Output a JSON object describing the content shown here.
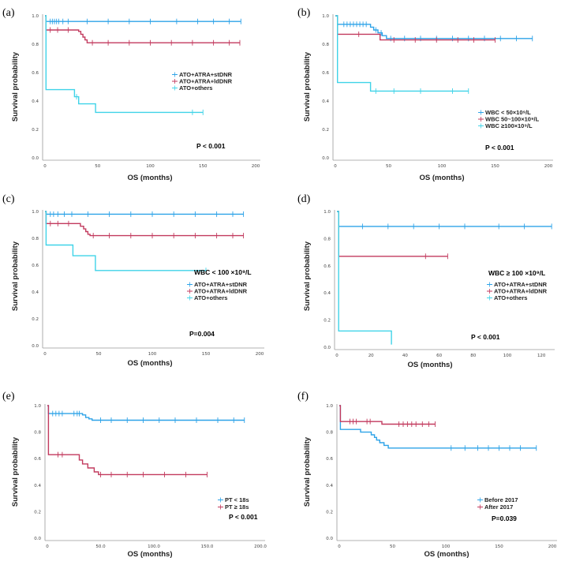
{
  "colors": {
    "blue": "#2ea3e8",
    "red": "#c23a5e",
    "cyan": "#3fd3e8"
  },
  "chart_data": [
    {
      "type": "line",
      "panel": "(a)",
      "subtitle": "",
      "pvalue": "P < 0.001",
      "xlabel": "OS (months)",
      "ylabel": "Survival probability",
      "xlim": [
        0,
        200
      ],
      "ylim": [
        0,
        1.0
      ],
      "xticks": [
        0,
        50,
        100,
        150,
        200
      ],
      "xtick_labels": [
        "0",
        "50",
        "100",
        "150",
        "200"
      ],
      "yticks": [
        0,
        0.2,
        0.4,
        0.6,
        0.8,
        1.0
      ],
      "ytick_labels": [
        "0.0",
        "0.2",
        "0.4",
        "0.6",
        "0.8",
        "1.0"
      ],
      "legend_pos": "middle-right",
      "series": [
        {
          "name": "ATO+ATRA+stDNR",
          "color": "blue",
          "steps": [
            [
              0,
              1.0
            ],
            [
              1,
              0.96
            ],
            [
              186,
              0.96
            ]
          ],
          "censors": [
            5,
            7,
            9,
            11,
            13,
            17,
            22,
            40,
            60,
            80,
            100,
            125,
            145,
            160,
            175,
            186
          ]
        },
        {
          "name": "ATO+ATRA+ldDNR",
          "color": "red",
          "steps": [
            [
              0,
              1.0
            ],
            [
              1,
              0.9
            ],
            [
              30,
              0.9
            ],
            [
              32,
              0.89
            ],
            [
              34,
              0.87
            ],
            [
              36,
              0.85
            ],
            [
              38,
              0.83
            ],
            [
              40,
              0.81
            ],
            [
              185,
              0.81
            ]
          ],
          "censors": [
            5,
            12,
            22,
            45,
            60,
            80,
            100,
            120,
            140,
            160,
            175,
            185
          ]
        },
        {
          "name": "ATO+others",
          "color": "cyan",
          "steps": [
            [
              0,
              1.0
            ],
            [
              1,
              0.48
            ],
            [
              28,
              0.48
            ],
            [
              28,
              0.43
            ],
            [
              32,
              0.43
            ],
            [
              32,
              0.38
            ],
            [
              48,
              0.38
            ],
            [
              48,
              0.32
            ],
            [
              150,
              0.32
            ]
          ],
          "censors": [
            30,
            140,
            150
          ]
        }
      ]
    },
    {
      "type": "line",
      "panel": "(b)",
      "subtitle": "",
      "pvalue": "P < 0.001",
      "xlabel": "OS (months)",
      "ylabel": "Survival probability",
      "xlim": [
        0,
        200
      ],
      "ylim": [
        0,
        1.0
      ],
      "xticks": [
        0,
        50,
        100,
        150,
        200
      ],
      "xtick_labels": [
        "0",
        "50",
        "100",
        "150",
        "200"
      ],
      "yticks": [
        0,
        0.2,
        0.4,
        0.6,
        0.8,
        1.0
      ],
      "ytick_labels": [
        "0.0",
        "0.2",
        "0.4",
        "0.6",
        "0.8",
        "1.0"
      ],
      "legend_pos": "bottom-right",
      "series": [
        {
          "name": "WBC  < 50×10⁹/L",
          "color": "blue",
          "steps": [
            [
              0,
              1.0
            ],
            [
              2,
              0.94
            ],
            [
              30,
              0.94
            ],
            [
              33,
              0.92
            ],
            [
              36,
              0.9
            ],
            [
              40,
              0.88
            ],
            [
              44,
              0.86
            ],
            [
              48,
              0.84
            ],
            [
              185,
              0.84
            ]
          ],
          "censors": [
            8,
            11,
            14,
            17,
            20,
            23,
            26,
            29,
            38,
            43,
            52,
            65,
            80,
            95,
            110,
            125,
            140,
            155,
            170,
            185
          ]
        },
        {
          "name": "WBC  50~100×10⁹/L",
          "color": "red",
          "steps": [
            [
              0,
              1.0
            ],
            [
              2,
              0.87
            ],
            [
              40,
              0.87
            ],
            [
              42,
              0.83
            ],
            [
              150,
              0.83
            ]
          ],
          "censors": [
            22,
            55,
            75,
            95,
            115,
            130,
            150
          ]
        },
        {
          "name": "WBC  ≥100×10⁹/L",
          "color": "cyan",
          "steps": [
            [
              0,
              1.0
            ],
            [
              2,
              0.53
            ],
            [
              33,
              0.53
            ],
            [
              33,
              0.47
            ],
            [
              125,
              0.47
            ]
          ],
          "censors": [
            38,
            55,
            80,
            110,
            125
          ]
        }
      ]
    },
    {
      "type": "line",
      "panel": "(c)",
      "subtitle": "WBC < 100 ×10⁹/L",
      "pvalue": "P=0.004",
      "xlabel": "OS (months)",
      "ylabel": "Survival probability",
      "xlim": [
        0,
        200
      ],
      "ylim": [
        0,
        1.0
      ],
      "xticks": [
        0,
        50,
        100,
        150,
        200
      ],
      "xtick_labels": [
        "0",
        "50",
        "100",
        "150",
        "200"
      ],
      "yticks": [
        0,
        0.2,
        0.4,
        0.6,
        0.8,
        1.0
      ],
      "ytick_labels": [
        "0.0",
        "0.2",
        "0.4",
        "0.6",
        "0.8",
        "1.0"
      ],
      "legend_pos": "bottom-right",
      "series": [
        {
          "name": "ATO+ATRA+stDNR",
          "color": "blue",
          "steps": [
            [
              0,
              1.0
            ],
            [
              1,
              0.98
            ],
            [
              185,
              0.98
            ]
          ],
          "censors": [
            5,
            8,
            12,
            18,
            25,
            40,
            60,
            80,
            100,
            120,
            140,
            160,
            175,
            185
          ]
        },
        {
          "name": "ATO+ATRA+ldDNR",
          "color": "red",
          "steps": [
            [
              0,
              1.0
            ],
            [
              1,
              0.91
            ],
            [
              30,
              0.91
            ],
            [
              33,
              0.89
            ],
            [
              36,
              0.87
            ],
            [
              38,
              0.85
            ],
            [
              40,
              0.83
            ],
            [
              42,
              0.82
            ],
            [
              185,
              0.82
            ]
          ],
          "censors": [
            5,
            12,
            22,
            45,
            60,
            80,
            100,
            120,
            140,
            160,
            175,
            185
          ]
        },
        {
          "name": "ATO+others",
          "color": "cyan",
          "steps": [
            [
              0,
              1.0
            ],
            [
              1,
              0.75
            ],
            [
              26,
              0.75
            ],
            [
              26,
              0.67
            ],
            [
              47,
              0.67
            ],
            [
              47,
              0.56
            ],
            [
              150,
              0.56
            ]
          ],
          "censors": [
            150
          ]
        }
      ]
    },
    {
      "type": "line",
      "panel": "(d)",
      "subtitle": "WBC ≥ 100 ×10⁹/L",
      "pvalue": "P < 0.001",
      "xlabel": "OS (months)",
      "ylabel": "Survival probability",
      "xlim": [
        0,
        125
      ],
      "ylim": [
        0,
        1.0
      ],
      "xticks": [
        0,
        20,
        40,
        60,
        80,
        100,
        120
      ],
      "xtick_labels": [
        "0",
        "20",
        "40",
        "60",
        "80",
        "100",
        "120"
      ],
      "yticks": [
        0,
        0.2,
        0.4,
        0.6,
        0.8,
        1.0
      ],
      "ytick_labels": [
        "0.0",
        "0.2",
        "0.4",
        "0.6",
        "0.8",
        "1.0"
      ],
      "legend_pos": "bottom-right",
      "series": [
        {
          "name": "ATO+ATRA+stDNR",
          "color": "blue",
          "steps": [
            [
              0,
              1.0
            ],
            [
              1,
              0.89
            ],
            [
              126,
              0.89
            ]
          ],
          "censors": [
            15,
            30,
            45,
            60,
            75,
            95,
            110,
            126
          ]
        },
        {
          "name": "ATO+ATRA+ldDNR",
          "color": "red",
          "steps": [
            [
              0,
              1.0
            ],
            [
              1,
              0.67
            ],
            [
              65,
              0.67
            ]
          ],
          "censors": [
            52,
            65
          ]
        },
        {
          "name": "ATO+others",
          "color": "cyan",
          "steps": [
            [
              0,
              1.0
            ],
            [
              1,
              0.12
            ],
            [
              32,
              0.12
            ],
            [
              32,
              0.02
            ]
          ],
          "censors": []
        }
      ]
    },
    {
      "type": "line",
      "panel": "(e)",
      "subtitle": "",
      "pvalue": "P < 0.001",
      "xlabel": "OS (months)",
      "ylabel": "Survival probability",
      "xlim": [
        0,
        200
      ],
      "ylim": [
        0,
        1.0
      ],
      "xticks": [
        0,
        50,
        100,
        150,
        200
      ],
      "xtick_labels": [
        "0",
        "50.0",
        "100.0",
        "150.0",
        "200.0"
      ],
      "yticks": [
        0,
        0.2,
        0.4,
        0.6,
        0.8,
        1.0
      ],
      "ytick_labels": [
        "0.0",
        "0.2",
        "0.4",
        "0.6",
        "0.8",
        "1.0"
      ],
      "legend_pos": "bottom-right",
      "series": [
        {
          "name": "PT < 18s",
          "color": "blue",
          "steps": [
            [
              0,
              1.0
            ],
            [
              1,
              0.94
            ],
            [
              30,
              0.94
            ],
            [
              33,
              0.93
            ],
            [
              36,
              0.91
            ],
            [
              39,
              0.9
            ],
            [
              42,
              0.89
            ],
            [
              185,
              0.89
            ]
          ],
          "censors": [
            5,
            8,
            11,
            14,
            25,
            28,
            30,
            50,
            60,
            75,
            90,
            105,
            120,
            140,
            160,
            175,
            185
          ]
        },
        {
          "name": "PT ≥ 18s",
          "color": "red",
          "steps": [
            [
              0,
              1.0
            ],
            [
              1,
              0.63
            ],
            [
              30,
              0.63
            ],
            [
              30,
              0.59
            ],
            [
              33,
              0.56
            ],
            [
              38,
              0.53
            ],
            [
              44,
              0.5
            ],
            [
              48,
              0.48
            ],
            [
              150,
              0.48
            ]
          ],
          "censors": [
            10,
            14,
            50,
            60,
            75,
            90,
            110,
            130,
            150
          ]
        }
      ]
    },
    {
      "type": "line",
      "panel": "(f)",
      "subtitle": "",
      "pvalue": "P=0.039",
      "xlabel": "OS (months)",
      "ylabel": "Survival probability",
      "xlim": [
        0,
        200
      ],
      "ylim": [
        0,
        1.0
      ],
      "xticks": [
        0,
        50,
        100,
        150,
        200
      ],
      "xtick_labels": [
        "0",
        "50",
        "100",
        "150",
        "200"
      ],
      "yticks": [
        0,
        0.2,
        0.4,
        0.6,
        0.8,
        1.0
      ],
      "ytick_labels": [
        "0.0",
        "0.2",
        "0.4",
        "0.6",
        "0.8",
        "1.0"
      ],
      "legend_pos": "bottom-right",
      "series": [
        {
          "name": "Before 2017",
          "color": "blue",
          "steps": [
            [
              0,
              1.0
            ],
            [
              1,
              0.82
            ],
            [
              20,
              0.82
            ],
            [
              20,
              0.8
            ],
            [
              28,
              0.8
            ],
            [
              30,
              0.78
            ],
            [
              33,
              0.76
            ],
            [
              35,
              0.74
            ],
            [
              38,
              0.72
            ],
            [
              42,
              0.7
            ],
            [
              46,
              0.68
            ],
            [
              185,
              0.68
            ]
          ],
          "censors": [
            105,
            118,
            130,
            140,
            150,
            160,
            170,
            185
          ]
        },
        {
          "name": "After 2017",
          "color": "red",
          "steps": [
            [
              0,
              1.0
            ],
            [
              1,
              0.88
            ],
            [
              37,
              0.88
            ],
            [
              40,
              0.86
            ],
            [
              90,
              0.86
            ]
          ],
          "censors": [
            10,
            13,
            16,
            26,
            29,
            56,
            60,
            64,
            68,
            72,
            78,
            84,
            90
          ]
        }
      ]
    }
  ]
}
